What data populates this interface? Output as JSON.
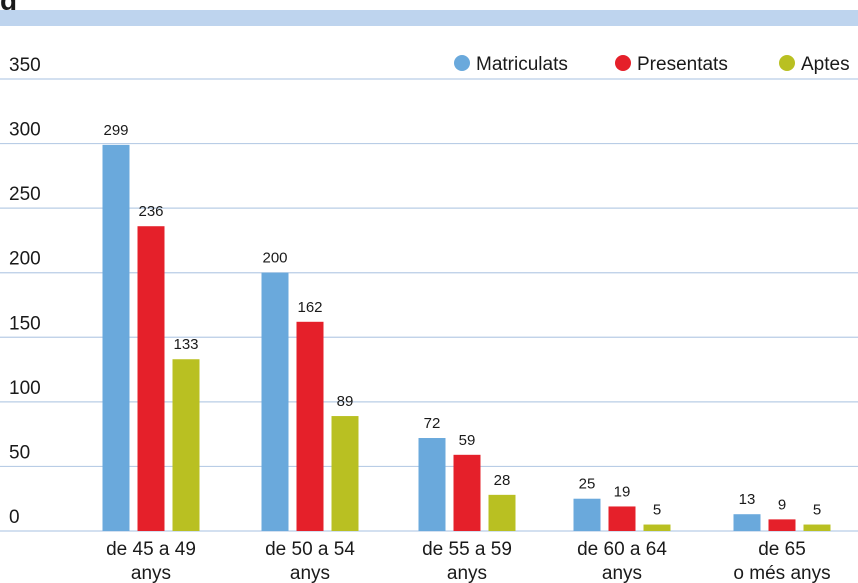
{
  "title": "g",
  "colors": {
    "title_band": "#bed4ee",
    "grid": "#b9cde6"
  },
  "chart_data": {
    "type": "bar",
    "categories": [
      [
        "de 45 a 49",
        "anys"
      ],
      [
        "de 50 a 54",
        "anys"
      ],
      [
        "de 55 a 59",
        "anys"
      ],
      [
        "de 60 a 64",
        "anys"
      ],
      [
        "de 65",
        "o més anys"
      ]
    ],
    "series": [
      {
        "name": "Matriculats",
        "color": "#6aa9dc",
        "values": [
          299,
          200,
          72,
          25,
          13
        ]
      },
      {
        "name": "Presentats",
        "color": "#e5202a",
        "values": [
          236,
          162,
          59,
          19,
          9
        ]
      },
      {
        "name": "Aptes",
        "color": "#b9c022",
        "values": [
          133,
          89,
          28,
          5,
          5
        ]
      }
    ],
    "ylim": [
      0,
      350
    ],
    "yticks": [
      0,
      50,
      100,
      150,
      200,
      250,
      300,
      350
    ],
    "grid": true,
    "legend_position": "top-right",
    "xlabel": "",
    "ylabel": ""
  }
}
